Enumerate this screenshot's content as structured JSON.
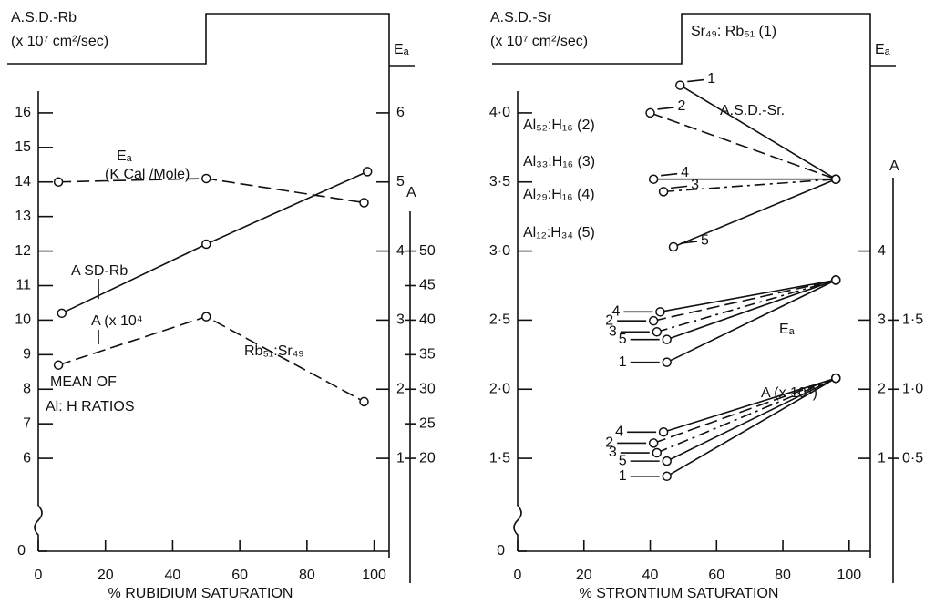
{
  "chart_data": [
    {
      "type": "line",
      "ylabel": [
        "A.S.D.-Rb",
        "(x 10⁷ cm²/sec)"
      ],
      "xlabel": "% RUBIDIUM SATURATION",
      "xlim": [
        0,
        105
      ],
      "xticks": [
        0,
        20,
        40,
        60,
        80,
        100
      ],
      "ylim": [
        5,
        17
      ],
      "yticks": [
        6,
        7,
        8,
        9,
        10,
        11,
        12,
        13,
        14,
        15,
        16
      ],
      "yticks_below_break": [
        0
      ],
      "y2label": "Eₐ",
      "y2lim": [
        0.5,
        6.5
      ],
      "y2ticks": [
        1,
        2,
        3,
        4,
        5,
        6
      ],
      "y3label": "A",
      "y3lim": [
        15,
        75
      ],
      "y3ticks": [
        20,
        25,
        30,
        35,
        40,
        45,
        50
      ],
      "series": [
        {
          "name": "A SD-Rb",
          "axis": "y",
          "style": "solid",
          "x": [
            7,
            50,
            98
          ],
          "values": [
            10.2,
            12.2,
            14.3
          ]
        },
        {
          "name": "Eₐ",
          "axis": "y2",
          "style": "dashed",
          "x": [
            6,
            50,
            97
          ],
          "values": [
            5.0,
            5.05,
            4.7
          ]
        },
        {
          "name": "A (x 10⁴",
          "axis": "y3",
          "style": "dashed",
          "x": [
            6,
            50,
            97
          ],
          "values": [
            33.5,
            40.5,
            28.2
          ]
        }
      ],
      "annotations": [
        "(K Cal /Mole)",
        "Rb₅₁:Sr₄₉",
        "MEAN OF",
        "Al: H RATIOS"
      ]
    },
    {
      "type": "line",
      "ylabel": [
        "A.S.D.-Sr",
        "(x 10⁷ cm²/sec)"
      ],
      "header": "Sr₄₉: Rb₅₁ (1)",
      "legend": [
        "Al₅₂:H₁₆ (2)",
        "Al₃₃:H₁₆ (3)",
        "Al₂₉:H₁₆ (4)",
        "Al₁₂:H₃₄ (5)"
      ],
      "xlabel": "% STRONTIUM SATURATION",
      "xlim": [
        0,
        105
      ],
      "xticks": [
        0,
        20,
        40,
        60,
        80,
        100
      ],
      "ylim": [
        1.25,
        4.25
      ],
      "yticks": [
        {
          "value": 1.5,
          "label": "1·5"
        },
        {
          "value": 2,
          "label": "2·0"
        },
        {
          "value": 2.5,
          "label": "2·5"
        },
        {
          "value": 3,
          "label": "3·0"
        },
        {
          "value": 3.5,
          "label": "3·5"
        },
        {
          "value": 4,
          "label": "4·0"
        }
      ],
      "yticks_below_break": [
        0
      ],
      "y2label": "Eₐ",
      "y2lim": [
        0.5,
        6.5
      ],
      "y2ticks": [
        1,
        2,
        3,
        4
      ],
      "y3label": "A",
      "y3lim": [
        0.25,
        3.25
      ],
      "y3ticks": [
        {
          "value": 0.5,
          "label": "0·5"
        },
        {
          "value": 1,
          "label": "1·0"
        },
        {
          "value": 1.5,
          "label": "1·5"
        }
      ],
      "groups": [
        {
          "name": "A.S.D.-Sr.",
          "axis": "y",
          "series": [
            {
              "name": "1",
              "style": "solid",
              "x": [
                49,
                96
              ],
              "values": [
                4.2,
                3.52
              ]
            },
            {
              "name": "2",
              "style": "dashed",
              "x": [
                40,
                96
              ],
              "values": [
                4.0,
                3.52
              ]
            },
            {
              "name": "4",
              "style": "solid",
              "x": [
                41,
                96
              ],
              "values": [
                3.52,
                3.52
              ]
            },
            {
              "name": "3",
              "style": "dashdot",
              "x": [
                44,
                96
              ],
              "values": [
                3.43,
                3.52
              ]
            },
            {
              "name": "5",
              "style": "solid",
              "x": [
                47,
                96
              ],
              "values": [
                3.03,
                3.52
              ]
            }
          ]
        },
        {
          "name": "Eₐ",
          "axis": "y2",
          "series": [
            {
              "name": "4",
              "style": "solid",
              "x": [
                43,
                96
              ],
              "values": [
                3.12,
                3.58
              ]
            },
            {
              "name": "2",
              "style": "dashed",
              "x": [
                41,
                96
              ],
              "values": [
                2.99,
                3.58
              ]
            },
            {
              "name": "3",
              "style": "dashdot",
              "x": [
                42,
                96
              ],
              "values": [
                2.83,
                3.58
              ]
            },
            {
              "name": "5",
              "style": "solid",
              "x": [
                45,
                96
              ],
              "values": [
                2.72,
                3.58
              ]
            },
            {
              "name": "1",
              "style": "solid",
              "x": [
                45,
                96
              ],
              "values": [
                2.39,
                3.58
              ]
            }
          ]
        },
        {
          "name": "A (x 10⁴)",
          "axis": "y3",
          "series": [
            {
              "name": "4",
              "style": "solid",
              "x": [
                44,
                96
              ],
              "values": [
                0.69,
                1.08
              ]
            },
            {
              "name": "2",
              "style": "dashed",
              "x": [
                41,
                96
              ],
              "values": [
                0.61,
                1.08
              ]
            },
            {
              "name": "3",
              "style": "dashdot",
              "x": [
                42,
                96
              ],
              "values": [
                0.54,
                1.08
              ]
            },
            {
              "name": "5",
              "style": "solid",
              "x": [
                45,
                96
              ],
              "values": [
                0.48,
                1.08
              ]
            },
            {
              "name": "1",
              "style": "solid",
              "x": [
                45,
                96
              ],
              "values": [
                0.37,
                1.08
              ]
            }
          ]
        }
      ]
    }
  ]
}
